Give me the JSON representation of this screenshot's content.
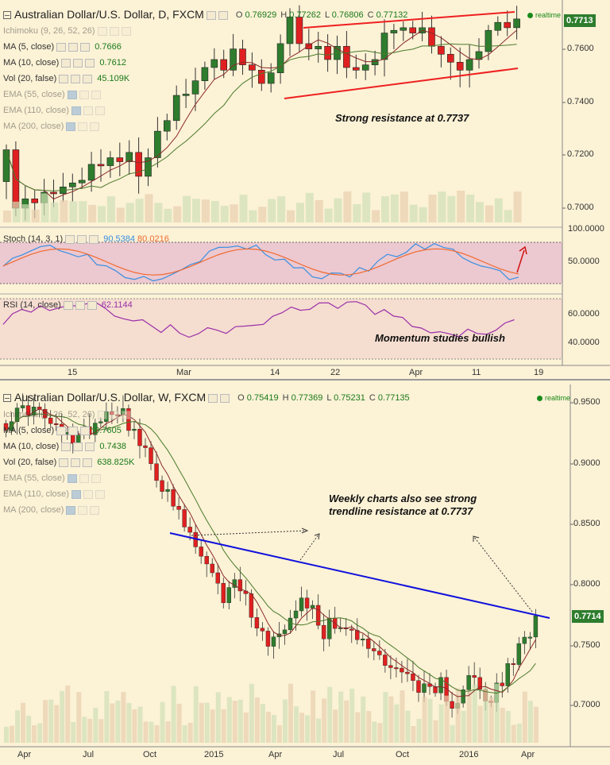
{
  "daily": {
    "title": "Australian Dollar/U.S. Dollar, D, FXCM",
    "ohlc": [
      {
        "k": "O",
        "v": "0.76929"
      },
      {
        "k": "H",
        "v": "0.77262"
      },
      {
        "k": "L",
        "v": "0.76806"
      },
      {
        "k": "C",
        "v": "0.77132"
      }
    ],
    "realtime": "realtime",
    "price_tag": "0.7713",
    "indicators": [
      {
        "name": "Ichimoku (9, 26, 52, 26)",
        "value": "",
        "faded": true,
        "blue": false
      },
      {
        "name": "MA (5, close)",
        "value": "0.7666",
        "faded": false,
        "blue": false
      },
      {
        "name": "MA (10, close)",
        "value": "0.7612",
        "faded": false,
        "blue": false
      },
      {
        "name": "Vol (20, false)",
        "value": "45.109K",
        "faded": false,
        "blue": false
      },
      {
        "name": "EMA (55, close)",
        "value": "",
        "faded": true,
        "blue": true
      },
      {
        "name": "EMA (110, close)",
        "value": "",
        "faded": true,
        "blue": true
      },
      {
        "name": "MA (200, close)",
        "value": "",
        "faded": true,
        "blue": true
      }
    ],
    "yticks": [
      "0.7000",
      "0.7200",
      "0.7400",
      "0.7600"
    ],
    "annotation": "Strong resistance at 0.7737",
    "stoch": {
      "label": "Stoch (14, 3, 1)",
      "v1": "90.5384",
      "v2": "80.0216",
      "yticks": [
        "100.0000",
        "50.0000"
      ]
    },
    "rsi": {
      "label": "RSI (14, close)",
      "value": "62.1144",
      "yticks": [
        "60.0000",
        "40.0000"
      ]
    },
    "momentum": "Momentum studies bullish",
    "xticks": [
      "15",
      "Mar",
      "14",
      "22",
      "Apr",
      "11",
      "19"
    ]
  },
  "weekly": {
    "title": "Australian Dollar/U.S. Dollar, W, FXCM",
    "ohlc": [
      {
        "k": "O",
        "v": "0.75419"
      },
      {
        "k": "H",
        "v": "0.77369"
      },
      {
        "k": "L",
        "v": "0.75231"
      },
      {
        "k": "C",
        "v": "0.77135"
      }
    ],
    "realtime": "realtime",
    "price_tag": "0.7714",
    "indicators": [
      {
        "name": "Ichimoku (9, 26, 52, 26)",
        "value": "",
        "faded": true,
        "blue": false
      },
      {
        "name": "MA (5, close)",
        "value": "0.7605",
        "faded": false,
        "blue": false
      },
      {
        "name": "MA (10, close)",
        "value": "0.7438",
        "faded": false,
        "blue": false
      },
      {
        "name": "Vol (20, false)",
        "value": "638.825K",
        "faded": false,
        "blue": false
      },
      {
        "name": "EMA (55, close)",
        "value": "",
        "faded": true,
        "blue": true
      },
      {
        "name": "EMA (110, close)",
        "value": "",
        "faded": true,
        "blue": true
      },
      {
        "name": "MA (200, close)",
        "value": "",
        "faded": true,
        "blue": true
      }
    ],
    "yticks": [
      "0.9500",
      "0.9000",
      "0.8500",
      "0.8000",
      "0.7500",
      "0.7000"
    ],
    "annotation_line1": "Weekly charts also see strong",
    "annotation_line2": "trendline resistance at 0.7737",
    "xticks": [
      "Apr",
      "Jul",
      "Oct",
      "2015",
      "Apr",
      "Jul",
      "Oct",
      "2016",
      "Apr"
    ]
  },
  "colors": {
    "bull": "#2e7d2e",
    "bear": "#e02020",
    "channel": "#ee2020",
    "trend": "#1010dd",
    "stoch_fast": "#3a8fe0",
    "stoch_slow": "#f06a30",
    "rsi": "#9a2fa8"
  }
}
